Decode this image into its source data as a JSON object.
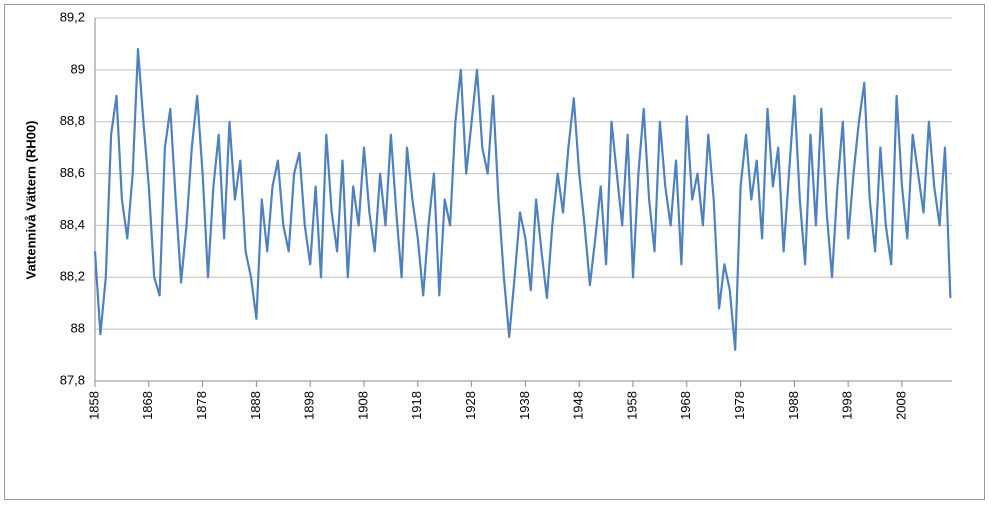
{
  "chart_data": {
    "type": "line",
    "y_label": "Vattennivå Vättern (RH00)",
    "x": [
      1858,
      1859,
      1860,
      1861,
      1862,
      1863,
      1864,
      1865,
      1866,
      1867,
      1868,
      1869,
      1870,
      1871,
      1872,
      1873,
      1874,
      1875,
      1876,
      1877,
      1878,
      1879,
      1880,
      1881,
      1882,
      1883,
      1884,
      1885,
      1886,
      1887,
      1888,
      1889,
      1890,
      1891,
      1892,
      1893,
      1894,
      1895,
      1896,
      1897,
      1898,
      1899,
      1900,
      1901,
      1902,
      1903,
      1904,
      1905,
      1906,
      1907,
      1908,
      1909,
      1910,
      1911,
      1912,
      1913,
      1914,
      1915,
      1916,
      1917,
      1918,
      1919,
      1920,
      1921,
      1922,
      1923,
      1924,
      1925,
      1926,
      1927,
      1928,
      1929,
      1930,
      1931,
      1932,
      1933,
      1934,
      1935,
      1936,
      1937,
      1938,
      1939,
      1940,
      1941,
      1942,
      1943,
      1944,
      1945,
      1946,
      1947,
      1948,
      1949,
      1950,
      1951,
      1952,
      1953,
      1954,
      1955,
      1956,
      1957,
      1958,
      1959,
      1960,
      1961,
      1962,
      1963,
      1964,
      1965,
      1966,
      1967,
      1968,
      1969,
      1970,
      1971,
      1972,
      1973,
      1974,
      1975,
      1976,
      1977,
      1978,
      1979,
      1980,
      1981,
      1982,
      1983,
      1984,
      1985,
      1986,
      1987,
      1988,
      1989,
      1990,
      1991,
      1992,
      1993,
      1994,
      1995,
      1996,
      1997,
      1998,
      1999,
      2000,
      2001,
      2002,
      2003,
      2004,
      2005,
      2006,
      2007,
      2008,
      2009,
      2010,
      2011,
      2012,
      2013,
      2014,
      2015,
      2016,
      2017
    ],
    "series": [
      {
        "color": "#4f81bd",
        "values": [
          88.3,
          87.98,
          88.2,
          88.75,
          88.9,
          88.5,
          88.35,
          88.6,
          89.08,
          88.8,
          88.55,
          88.2,
          88.13,
          88.7,
          88.85,
          88.5,
          88.18,
          88.4,
          88.7,
          88.9,
          88.6,
          88.2,
          88.55,
          88.75,
          88.35,
          88.8,
          88.5,
          88.65,
          88.3,
          88.2,
          88.04,
          88.5,
          88.3,
          88.55,
          88.65,
          88.4,
          88.3,
          88.6,
          88.68,
          88.4,
          88.25,
          88.55,
          88.2,
          88.75,
          88.45,
          88.3,
          88.65,
          88.2,
          88.55,
          88.4,
          88.7,
          88.45,
          88.3,
          88.6,
          88.4,
          88.75,
          88.45,
          88.2,
          88.7,
          88.5,
          88.35,
          88.13,
          88.4,
          88.6,
          88.13,
          88.5,
          88.4,
          88.8,
          89.0,
          88.6,
          88.8,
          89.0,
          88.7,
          88.6,
          88.9,
          88.5,
          88.2,
          87.97,
          88.2,
          88.45,
          88.35,
          88.15,
          88.5,
          88.3,
          88.12,
          88.4,
          88.6,
          88.45,
          88.7,
          88.89,
          88.6,
          88.4,
          88.17,
          88.35,
          88.55,
          88.25,
          88.8,
          88.6,
          88.4,
          88.75,
          88.2,
          88.6,
          88.85,
          88.5,
          88.3,
          88.8,
          88.55,
          88.4,
          88.65,
          88.25,
          88.82,
          88.5,
          88.6,
          88.4,
          88.75,
          88.5,
          88.08,
          88.25,
          88.15,
          87.92,
          88.55,
          88.75,
          88.5,
          88.65,
          88.35,
          88.85,
          88.55,
          88.7,
          88.3,
          88.6,
          88.9,
          88.5,
          88.25,
          88.75,
          88.4,
          88.85,
          88.45,
          88.2,
          88.55,
          88.8,
          88.35,
          88.6,
          88.8,
          88.95,
          88.5,
          88.3,
          88.7,
          88.4,
          88.25,
          88.9,
          88.55,
          88.35,
          88.75,
          88.6,
          88.45,
          88.8,
          88.55,
          88.4,
          88.7,
          88.12
        ]
      }
    ],
    "xlim": [
      1858,
      2017.3
    ],
    "xticks": [
      1858,
      1868,
      1878,
      1888,
      1898,
      1908,
      1918,
      1928,
      1938,
      1948,
      1958,
      1968,
      1978,
      1988,
      1998,
      2008
    ],
    "ylim": [
      87.8,
      89.2
    ],
    "yticks": [
      {
        "value": 87.8,
        "label": "87,8"
      },
      88,
      {
        "value": 88.2,
        "label": "88,2"
      },
      {
        "value": 88.4,
        "label": "88,4"
      },
      {
        "value": 88.6,
        "label": "88,6"
      },
      {
        "value": 88.8,
        "label": "88,8"
      },
      89,
      {
        "value": 89.2,
        "label": "89,2"
      }
    ],
    "grid": true
  }
}
